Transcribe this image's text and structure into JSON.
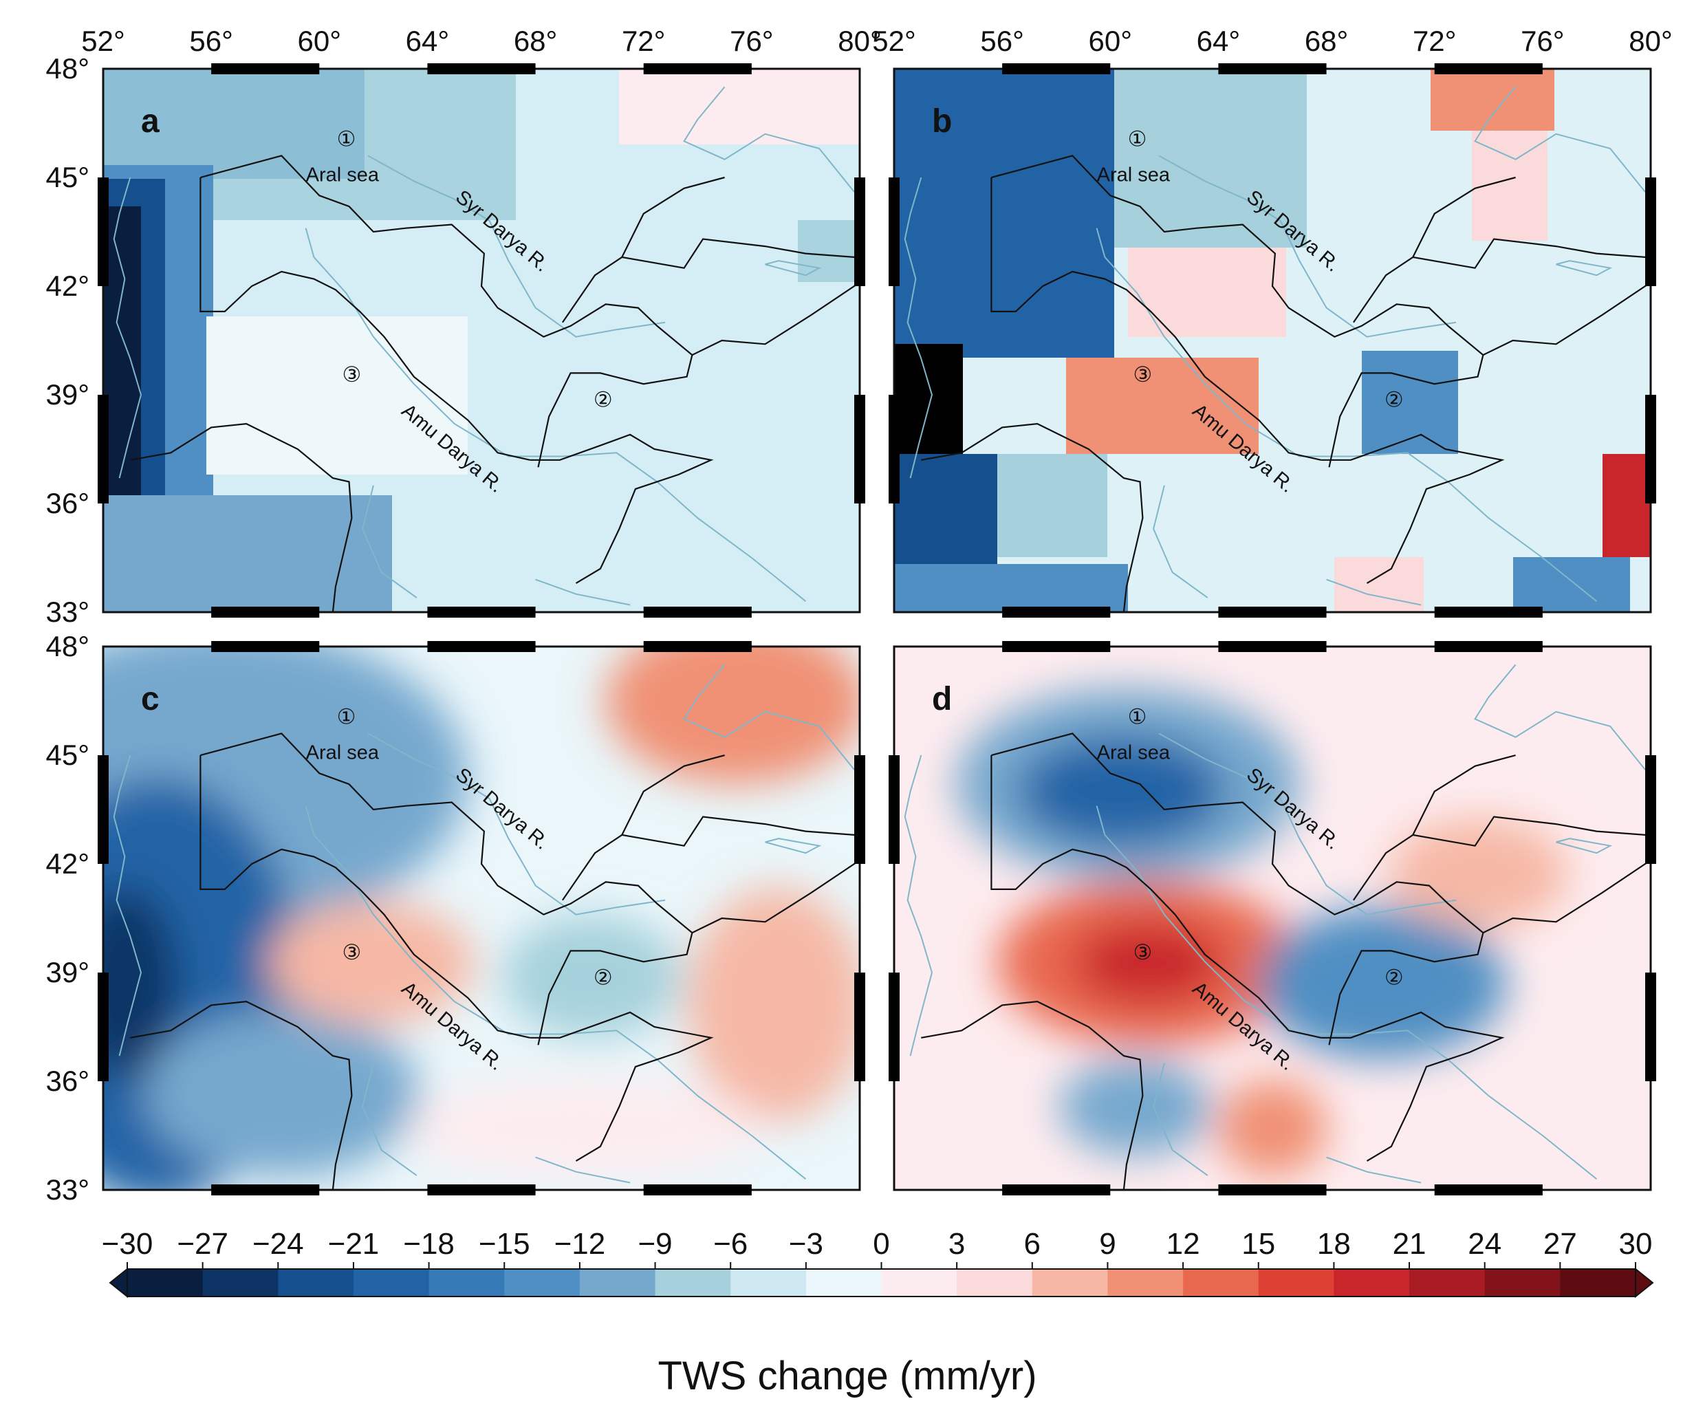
{
  "figure": {
    "panels": [
      {
        "letter": "a"
      },
      {
        "letter": "b"
      },
      {
        "letter": "c"
      },
      {
        "letter": "d"
      }
    ],
    "lon_ticks": [
      "52°",
      "56°",
      "60°",
      "64°",
      "68°",
      "72°",
      "76°",
      "80°"
    ],
    "lat_ticks": [
      "48°",
      "45°",
      "42°",
      "39°",
      "36°",
      "33°"
    ],
    "lon_range": [
      52,
      80
    ],
    "lat_range": [
      33,
      48
    ],
    "labels": {
      "aral": "Aral sea",
      "syr": "Syr Darya R.",
      "amu": "Amu Darya R."
    },
    "regions": [
      {
        "id": "1",
        "text": "①"
      },
      {
        "id": "2",
        "text": "②"
      },
      {
        "id": "3",
        "text": "③"
      }
    ],
    "colorbar": {
      "title": "TWS change (mm/yr)",
      "ticks": [
        "−30",
        "−27",
        "−24",
        "−21",
        "−18",
        "−15",
        "−12",
        "−9",
        "−6",
        "−3",
        "0",
        "3",
        "6",
        "9",
        "12",
        "15",
        "18",
        "21",
        "24",
        "27",
        "30"
      ],
      "colors": [
        "#0a1e3f",
        "#0e3466",
        "#154f8e",
        "#2263a6",
        "#3579b6",
        "#4f8fc3",
        "#76a8ce",
        "#a6d1dc",
        "#cfe9f2",
        "#eaf6fa",
        "#fdecef",
        "#fbdadb",
        "#f6b8a5",
        "#f09175",
        "#e9694f",
        "#dc4133",
        "#c9262b",
        "#a91c23",
        "#82131b",
        "#5e0c12"
      ]
    }
  }
}
